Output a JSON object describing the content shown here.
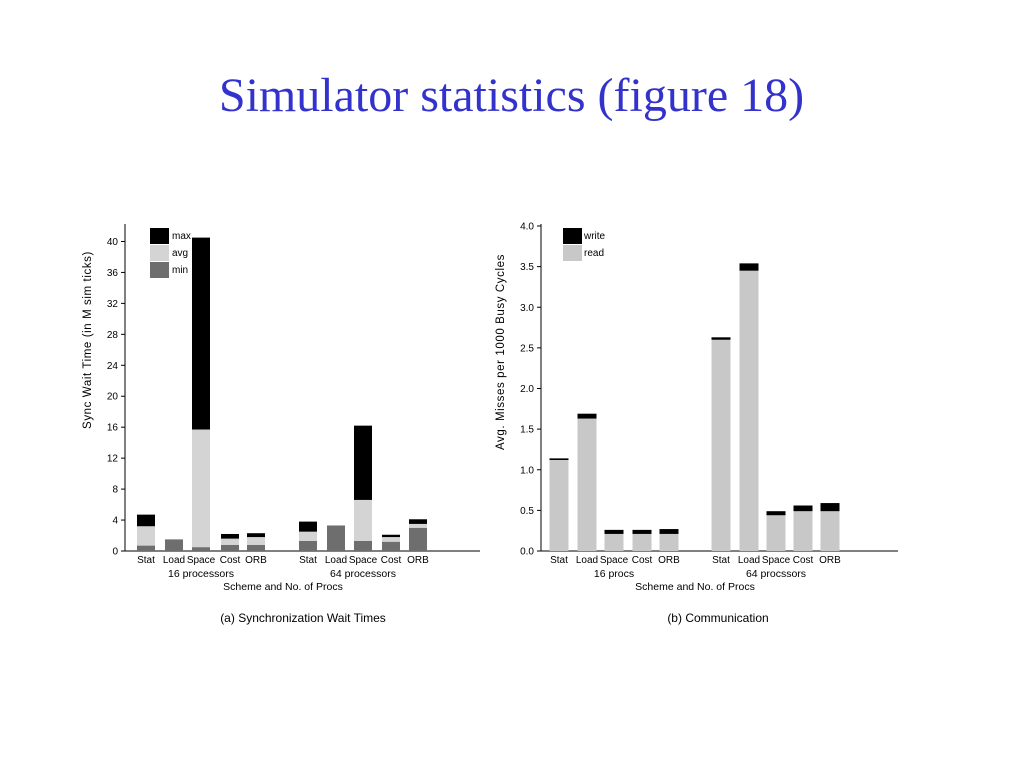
{
  "slide": {
    "title": "Simulator statistics (figure 18)"
  },
  "chart_data": [
    {
      "type": "bar",
      "stacked": true,
      "caption": "(a) Synchronization Wait Times",
      "xlabel": "Scheme and No. of Procs",
      "ylabel": "Sync Wait Time (in M sim ticks)",
      "ylim": [
        0,
        42
      ],
      "yticks": [
        0,
        4,
        8,
        12,
        16,
        20,
        24,
        28,
        32,
        36,
        40
      ],
      "groups": [
        {
          "label": "16 processors",
          "categories": [
            "Stat",
            "Load",
            "Space",
            "Cost",
            "ORB"
          ]
        },
        {
          "label": "64 processors",
          "categories": [
            "Stat",
            "Load",
            "Space",
            "Cost",
            "ORB"
          ]
        }
      ],
      "legend": {
        "placement": "top-left",
        "entries": [
          "max",
          "avg",
          "min"
        ]
      },
      "colors": {
        "max": "#000000",
        "avg": "#d4d4d4",
        "min": "#6e6e6e"
      },
      "bars": [
        {
          "group": 0,
          "category": "Stat",
          "min": 0.7,
          "avg": 3.2,
          "max": 4.7
        },
        {
          "group": 0,
          "category": "Load",
          "min": 1.5,
          "avg": 1.5,
          "max": 1.5
        },
        {
          "group": 0,
          "category": "Space",
          "min": 0.5,
          "avg": 15.7,
          "max": 40.5
        },
        {
          "group": 0,
          "category": "Cost",
          "min": 0.8,
          "avg": 1.6,
          "max": 2.2
        },
        {
          "group": 0,
          "category": "ORB",
          "min": 0.8,
          "avg": 1.8,
          "max": 2.3
        },
        {
          "group": 1,
          "category": "Stat",
          "min": 1.3,
          "avg": 2.5,
          "max": 3.8
        },
        {
          "group": 1,
          "category": "Load",
          "min": 3.3,
          "avg": 3.3,
          "max": 3.3
        },
        {
          "group": 1,
          "category": "Space",
          "min": 1.3,
          "avg": 6.6,
          "max": 16.2
        },
        {
          "group": 1,
          "category": "Cost",
          "min": 1.2,
          "avg": 1.8,
          "max": 2.1
        },
        {
          "group": 1,
          "category": "ORB",
          "min": 3.0,
          "avg": 3.5,
          "max": 4.1
        }
      ]
    },
    {
      "type": "bar",
      "stacked": true,
      "caption": "(b) Communication",
      "xlabel": "Scheme and No. of Procs",
      "ylabel": "Avg. Misses per 1000 Busy Cycles",
      "ylim": [
        0,
        4.0
      ],
      "yticks": [
        "0.0",
        "0.5",
        "1.0",
        "1.5",
        "2.0",
        "2.5",
        "3.0",
        "3.5",
        "4.0"
      ],
      "groups": [
        {
          "label": "16 procs",
          "categories": [
            "Stat",
            "Load",
            "Space",
            "Cost",
            "ORB"
          ]
        },
        {
          "label": "64 procssors",
          "categories": [
            "Stat",
            "Load",
            "Space",
            "Cost",
            "ORB"
          ]
        }
      ],
      "legend": {
        "placement": "top-left",
        "entries": [
          "write",
          "read"
        ]
      },
      "colors": {
        "write": "#000000",
        "read": "#c8c8c8"
      },
      "bars": [
        {
          "group": 0,
          "category": "Stat",
          "read": 1.12,
          "write": 0.02
        },
        {
          "group": 0,
          "category": "Load",
          "read": 1.63,
          "write": 0.06
        },
        {
          "group": 0,
          "category": "Space",
          "read": 0.21,
          "write": 0.05
        },
        {
          "group": 0,
          "category": "Cost",
          "read": 0.21,
          "write": 0.05
        },
        {
          "group": 0,
          "category": "ORB",
          "read": 0.21,
          "write": 0.06
        },
        {
          "group": 1,
          "category": "Stat",
          "read": 2.6,
          "write": 0.03
        },
        {
          "group": 1,
          "category": "Load",
          "read": 3.45,
          "write": 0.09
        },
        {
          "group": 1,
          "category": "Space",
          "read": 0.44,
          "write": 0.05
        },
        {
          "group": 1,
          "category": "Cost",
          "read": 0.49,
          "write": 0.07
        },
        {
          "group": 1,
          "category": "ORB",
          "read": 0.49,
          "write": 0.1
        }
      ]
    }
  ]
}
